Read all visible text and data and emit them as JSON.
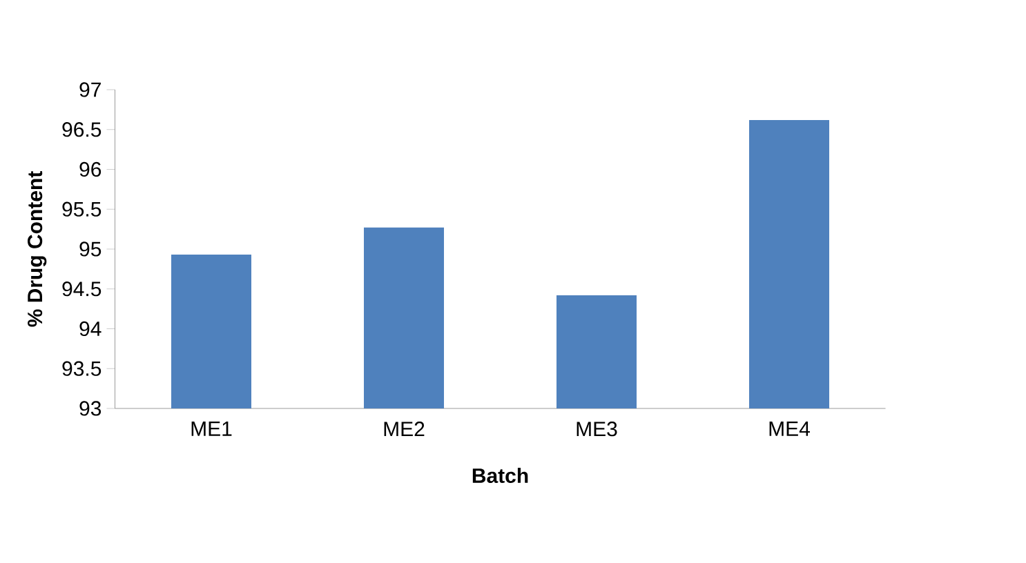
{
  "chart_data": {
    "type": "bar",
    "xlabel": "Batch",
    "ylabel": "% Drug Content",
    "categories": [
      "ME1",
      "ME2",
      "ME3",
      "ME4"
    ],
    "values": [
      94.93,
      95.27,
      94.42,
      96.62
    ],
    "color": "#4f81bd",
    "ylim": [
      93,
      97
    ],
    "yticks": [
      93,
      93.5,
      94,
      94.5,
      95,
      95.5,
      96,
      96.5,
      97
    ],
    "grid": false
  }
}
